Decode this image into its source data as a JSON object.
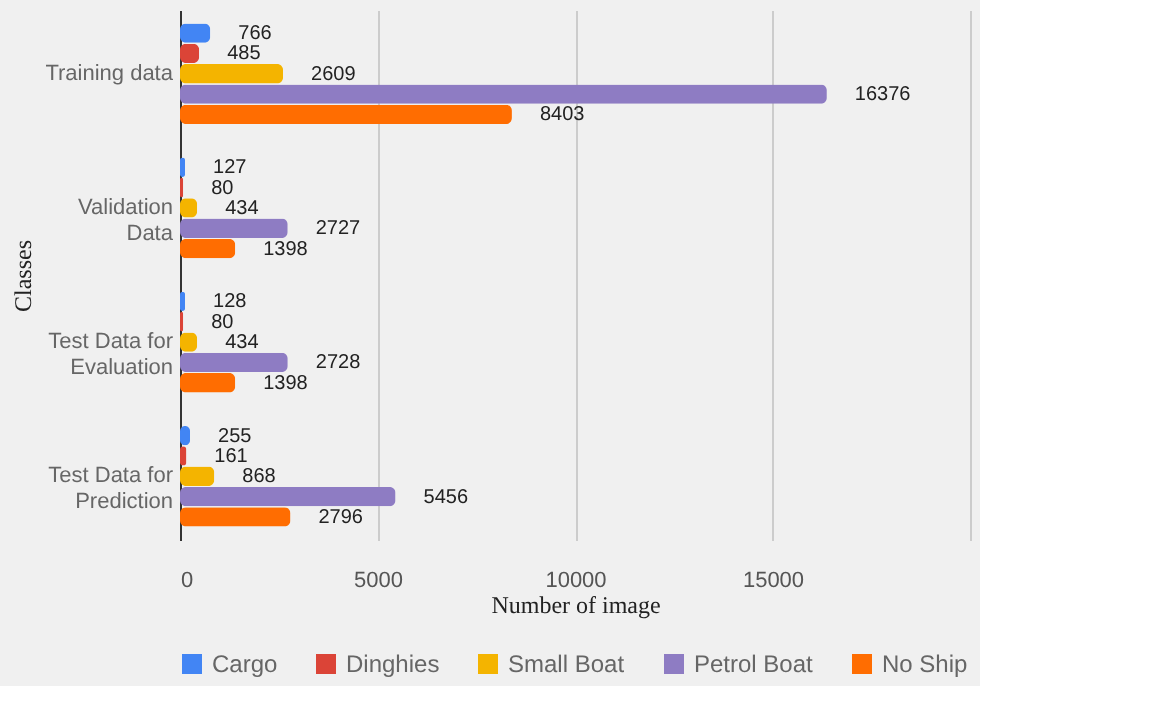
{
  "chart_data": {
    "type": "bar",
    "orientation": "horizontal",
    "xlabel": "Number of image",
    "ylabel": "Classes",
    "categories": [
      "Training data",
      "Validation Data",
      "Test Data for Evaluation",
      "Test Data for Prediction"
    ],
    "series": [
      {
        "name": "Cargo",
        "color": "#4285f4",
        "values": [
          766,
          127,
          128,
          255
        ]
      },
      {
        "name": "Dinghies",
        "color": "#db4437",
        "values": [
          485,
          80,
          80,
          161
        ]
      },
      {
        "name": "Small Boat",
        "color": "#f4b400",
        "values": [
          2609,
          434,
          434,
          868
        ]
      },
      {
        "name": "Petrol Boat",
        "color": "#8e7cc3",
        "values": [
          16376,
          2727,
          2728,
          5456
        ]
      },
      {
        "name": "No Ship",
        "color": "#ff6d01",
        "values": [
          8403,
          1398,
          1398,
          2796
        ]
      }
    ],
    "xlim": [
      0,
      20000
    ],
    "xticks": [
      0,
      5000,
      10000,
      15000,
      {
        "value": 20000,
        "label": null
      }
    ],
    "grid": "x",
    "legend": "bottom",
    "data_labels": true
  }
}
